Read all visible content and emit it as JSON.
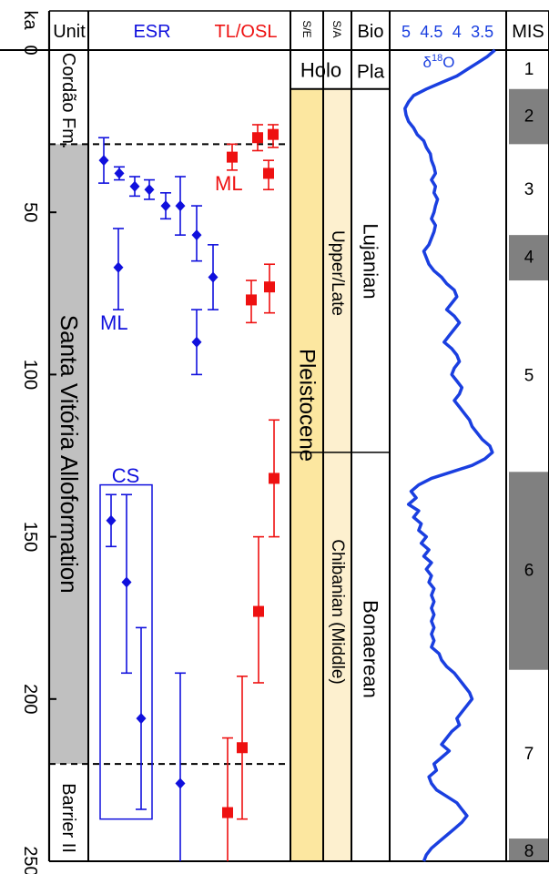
{
  "chart_data": {
    "type": "scatter",
    "y_axis": {
      "label": "ka",
      "range": [
        0,
        250
      ],
      "ticks": [
        "0",
        "50",
        "100",
        "150",
        "200",
        "250"
      ],
      "reversed": true
    },
    "headers": {
      "unit": "Unit",
      "esr": "ESR",
      "tlosl": "TL/OSL",
      "se": "S/E",
      "sa": "S/A",
      "bio": "Bio",
      "mis": "MIS"
    },
    "units": {
      "cordao": {
        "label": "Cordão Fm.",
        "range": [
          0,
          29
        ]
      },
      "santa_vitoria": {
        "label": "Santa Vitória Alloformation",
        "range": [
          29,
          220
        ]
      },
      "barrier": {
        "label": "Barrier II",
        "range": [
          220,
          250
        ]
      }
    },
    "boundaries_ka": [
      29,
      220
    ],
    "labels": {
      "ml_esr": "ML",
      "ml_tl": "ML",
      "cs": "CS"
    },
    "cs_box_ka": [
      134,
      237
    ],
    "colors": {
      "esr": "#1010dd",
      "tlosl": "#ee1111",
      "series_line": "#1a3fe0",
      "epoch": "#fce7a0",
      "age": "#fdf0cf",
      "mis_glacial": "#808080"
    },
    "series": [
      {
        "name": "ESR",
        "points": [
          {
            "age": 34,
            "err": [
              27,
              41
            ]
          },
          {
            "age": 38,
            "err": [
              36,
              40
            ]
          },
          {
            "age": 42,
            "err": [
              39,
              45
            ]
          },
          {
            "age": 43,
            "err": [
              40,
              46
            ]
          },
          {
            "age": 48,
            "err": [
              44,
              52
            ]
          },
          {
            "age": 48,
            "err": [
              39,
              57
            ]
          },
          {
            "age": 57,
            "err": [
              48,
              65
            ]
          },
          {
            "age": 67,
            "err": [
              55,
              80
            ]
          },
          {
            "age": 70,
            "err": [
              60,
              80
            ]
          },
          {
            "age": 90,
            "err": [
              80,
              100
            ]
          },
          {
            "age": 145,
            "err": [
              137,
              153
            ]
          },
          {
            "age": 164,
            "err": [
              137,
              192
            ]
          },
          {
            "age": 206,
            "err": [
              178,
              234
            ]
          },
          {
            "age": 226,
            "err": [
              192,
              250
            ]
          }
        ]
      },
      {
        "name": "TL/OSL",
        "points": [
          {
            "age": 26,
            "err": [
              23,
              30
            ]
          },
          {
            "age": 27,
            "err": [
              23,
              31
            ]
          },
          {
            "age": 33,
            "err": [
              29,
              37
            ]
          },
          {
            "age": 38,
            "err": [
              34,
              43
            ]
          },
          {
            "age": 73,
            "err": [
              66,
              81
            ]
          },
          {
            "age": 77,
            "err": [
              71,
              84
            ]
          },
          {
            "age": 132,
            "err": [
              114,
              150
            ]
          },
          {
            "age": 173,
            "err": [
              150,
              195
            ]
          },
          {
            "age": 215,
            "err": [
              193,
              237
            ]
          },
          {
            "age": 235,
            "err": [
              212,
              250
            ]
          }
        ]
      }
    ],
    "chronostratigraphy": {
      "se": [
        {
          "label": "Holo",
          "range": [
            0,
            12
          ]
        },
        {
          "label": "Pleistocene",
          "range": [
            12,
            250
          ]
        }
      ],
      "sa": [
        {
          "label": "Upper/Late",
          "range": [
            12,
            124
          ]
        },
        {
          "label": "Chibanian (Middle)",
          "range": [
            124,
            250
          ]
        }
      ],
      "bio": [
        {
          "label": "Pla",
          "range": [
            0,
            12
          ]
        },
        {
          "label": "Lujanian",
          "range": [
            12,
            124
          ]
        },
        {
          "label": "Bonaerean",
          "range": [
            124,
            250
          ]
        }
      ]
    },
    "d18o": {
      "label": "δ18O",
      "label_base": "δ",
      "label_sup": "18",
      "label_tail": "O",
      "axis_range": [
        5.25,
        3.1
      ],
      "ticks": [
        "5",
        "4.5",
        "4",
        "3.5"
      ],
      "tick_values": [
        5,
        4.5,
        4,
        3.5
      ],
      "points": [
        [
          0,
          3.25
        ],
        [
          2,
          3.4
        ],
        [
          4,
          3.6
        ],
        [
          6,
          3.8
        ],
        [
          8,
          4.0
        ],
        [
          10,
          4.3
        ],
        [
          12,
          4.6
        ],
        [
          14,
          4.85
        ],
        [
          16,
          4.95
        ],
        [
          18,
          5.02
        ],
        [
          20,
          5.0
        ],
        [
          22,
          4.95
        ],
        [
          24,
          4.85
        ],
        [
          26,
          4.78
        ],
        [
          28,
          4.65
        ],
        [
          30,
          4.6
        ],
        [
          32,
          4.52
        ],
        [
          34,
          4.5
        ],
        [
          36,
          4.45
        ],
        [
          38,
          4.42
        ],
        [
          40,
          4.5
        ],
        [
          42,
          4.42
        ],
        [
          44,
          4.45
        ],
        [
          46,
          4.38
        ],
        [
          48,
          4.42
        ],
        [
          50,
          4.45
        ],
        [
          52,
          4.5
        ],
        [
          54,
          4.42
        ],
        [
          56,
          4.45
        ],
        [
          58,
          4.5
        ],
        [
          60,
          4.55
        ],
        [
          62,
          4.65
        ],
        [
          64,
          4.6
        ],
        [
          66,
          4.55
        ],
        [
          68,
          4.45
        ],
        [
          70,
          4.3
        ],
        [
          72,
          4.2
        ],
        [
          74,
          4.05
        ],
        [
          76,
          4.0
        ],
        [
          78,
          4.1
        ],
        [
          80,
          4.2
        ],
        [
          82,
          4.05
        ],
        [
          84,
          3.95
        ],
        [
          86,
          4.05
        ],
        [
          88,
          4.15
        ],
        [
          90,
          4.25
        ],
        [
          92,
          4.1
        ],
        [
          94,
          4.0
        ],
        [
          96,
          3.95
        ],
        [
          98,
          4.05
        ],
        [
          100,
          4.1
        ],
        [
          102,
          4.0
        ],
        [
          104,
          3.9
        ],
        [
          106,
          3.95
        ],
        [
          108,
          4.05
        ],
        [
          110,
          3.95
        ],
        [
          112,
          3.85
        ],
        [
          114,
          3.75
        ],
        [
          116,
          3.7
        ],
        [
          118,
          3.6
        ],
        [
          120,
          3.5
        ],
        [
          122,
          3.35
        ],
        [
          124,
          3.3
        ],
        [
          126,
          3.45
        ],
        [
          128,
          3.7
        ],
        [
          130,
          4.1
        ],
        [
          132,
          4.5
        ],
        [
          134,
          4.75
        ],
        [
          136,
          4.9
        ],
        [
          138,
          4.8
        ],
        [
          140,
          4.95
        ],
        [
          142,
          4.75
        ],
        [
          144,
          4.85
        ],
        [
          146,
          4.7
        ],
        [
          148,
          4.75
        ],
        [
          150,
          4.6
        ],
        [
          152,
          4.7
        ],
        [
          154,
          4.55
        ],
        [
          156,
          4.65
        ],
        [
          158,
          4.5
        ],
        [
          160,
          4.6
        ],
        [
          162,
          4.5
        ],
        [
          164,
          4.55
        ],
        [
          166,
          4.45
        ],
        [
          168,
          4.5
        ],
        [
          170,
          4.45
        ],
        [
          172,
          4.5
        ],
        [
          174,
          4.45
        ],
        [
          176,
          4.5
        ],
        [
          178,
          4.45
        ],
        [
          180,
          4.5
        ],
        [
          182,
          4.45
        ],
        [
          184,
          4.5
        ],
        [
          186,
          4.35
        ],
        [
          188,
          4.3
        ],
        [
          190,
          4.2
        ],
        [
          192,
          4.05
        ],
        [
          194,
          3.95
        ],
        [
          196,
          3.85
        ],
        [
          198,
          3.75
        ],
        [
          200,
          3.7
        ],
        [
          202,
          3.8
        ],
        [
          204,
          3.9
        ],
        [
          206,
          4.0
        ],
        [
          208,
          3.95
        ],
        [
          210,
          4.1
        ],
        [
          212,
          4.2
        ],
        [
          214,
          4.3
        ],
        [
          216,
          4.15
        ],
        [
          218,
          4.3
        ],
        [
          220,
          4.45
        ],
        [
          222,
          4.4
        ],
        [
          224,
          4.55
        ],
        [
          226,
          4.5
        ],
        [
          228,
          4.4
        ],
        [
          230,
          4.2
        ],
        [
          232,
          4.0
        ],
        [
          234,
          3.9
        ],
        [
          236,
          3.8
        ],
        [
          238,
          3.9
        ],
        [
          240,
          4.05
        ],
        [
          242,
          4.2
        ],
        [
          244,
          4.35
        ],
        [
          246,
          4.5
        ],
        [
          248,
          4.6
        ],
        [
          250,
          4.65
        ]
      ]
    },
    "mis": [
      {
        "label": "1",
        "range": [
          0,
          12
        ],
        "glacial": false
      },
      {
        "label": "2",
        "range": [
          12,
          29
        ],
        "glacial": true
      },
      {
        "label": "3",
        "range": [
          29,
          57
        ],
        "glacial": false
      },
      {
        "label": "4",
        "range": [
          57,
          71
        ],
        "glacial": true
      },
      {
        "label": "5",
        "range": [
          71,
          130
        ],
        "glacial": false
      },
      {
        "label": "6",
        "range": [
          130,
          191
        ],
        "glacial": true
      },
      {
        "label": "7",
        "range": [
          191,
          243
        ],
        "glacial": false
      },
      {
        "label": "8",
        "range": [
          243,
          250
        ],
        "glacial": true
      }
    ]
  }
}
